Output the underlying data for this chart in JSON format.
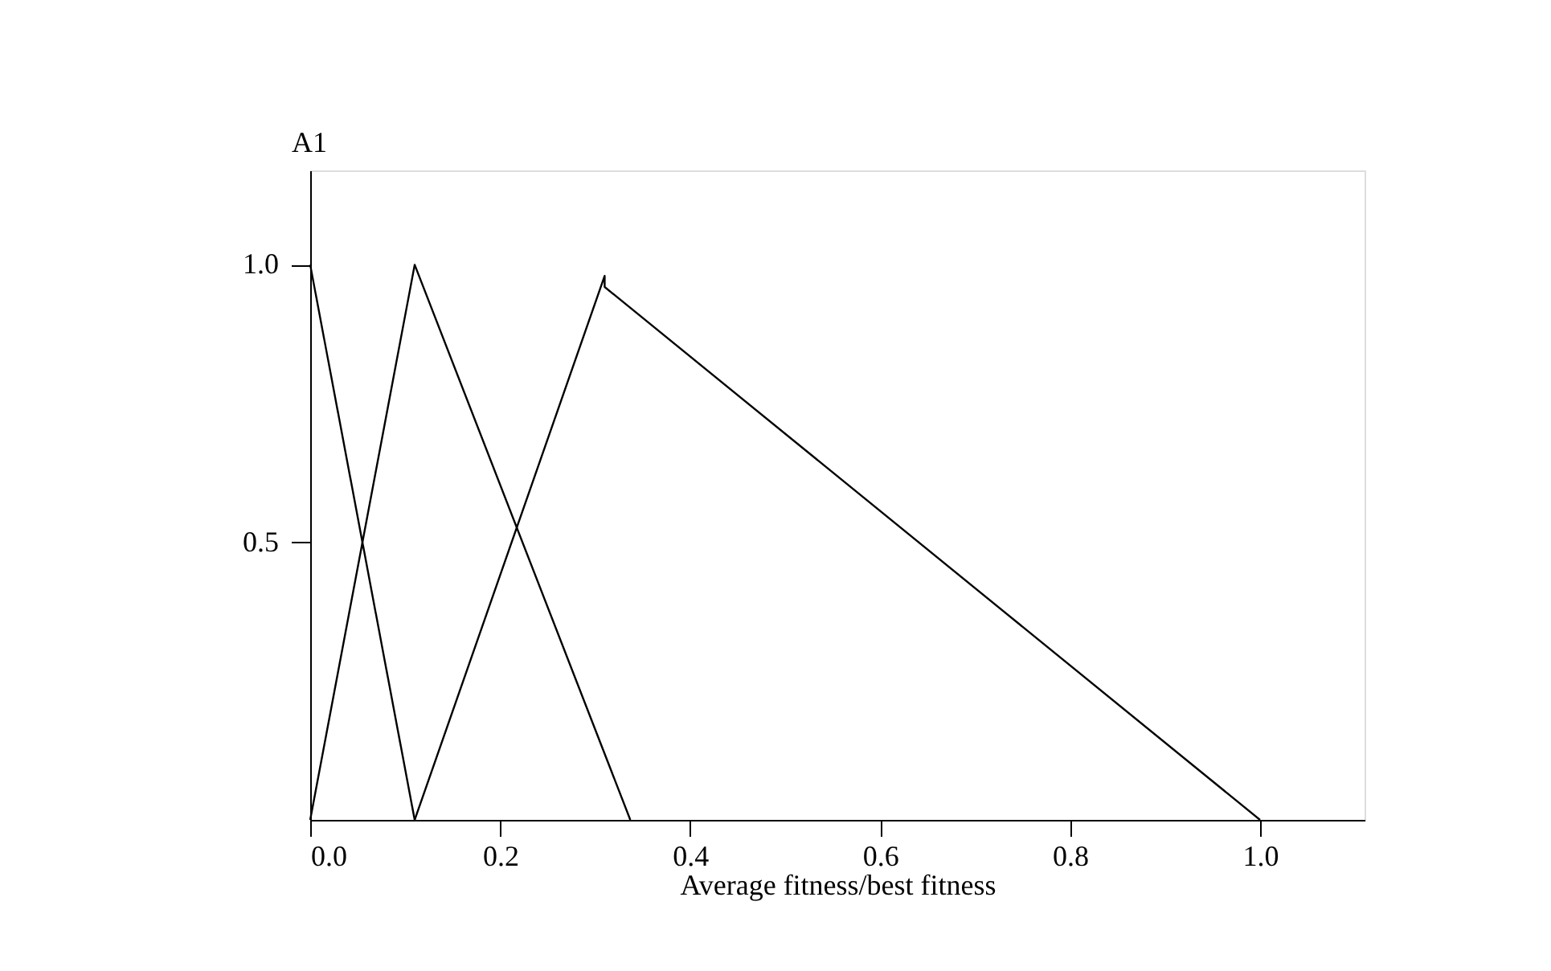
{
  "chart_data": {
    "type": "line",
    "xlabel": "Average fitness/best fitness",
    "ylabel": "A1",
    "xlim": [
      0,
      1.11
    ],
    "ylim": [
      0,
      1.17
    ],
    "xticks": [
      {
        "value": 0,
        "label": "0.0"
      },
      0.2,
      0.4,
      0.6,
      0.8,
      {
        "value": 1,
        "label": "1.0"
      }
    ],
    "yticks": [
      0.5,
      {
        "value": 1,
        "label": "1.0"
      }
    ],
    "grid": false,
    "legend": false,
    "marker": "none",
    "line_style": "solid",
    "series": [
      {
        "color": "#000000",
        "x": [
          0,
          0.11
        ],
        "values": [
          1,
          0
        ]
      },
      {
        "color": "#000000",
        "x": [
          0,
          0.11,
          0.337
        ],
        "values": [
          0,
          1,
          0
        ]
      },
      {
        "color": "#000000",
        "x": [
          0.11,
          0.31,
          0.31,
          1.0
        ],
        "values": [
          0,
          0.98,
          0.96,
          0
        ]
      }
    ]
  }
}
